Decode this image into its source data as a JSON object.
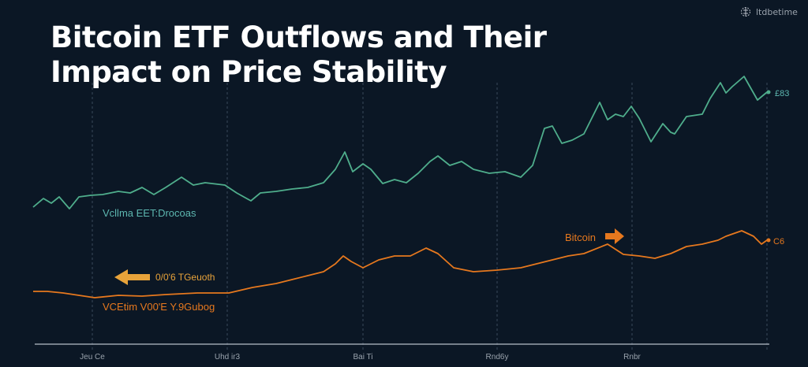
{
  "title_line1": "Bitcoin ETF Outflows and Their",
  "title_line2": "Impact on Price Stability",
  "brand": {
    "text": "ltdbetime",
    "icon": "network-logo-icon"
  },
  "colors": {
    "background": "#0b1725",
    "green": "#4fae8c",
    "orange": "#e6781e",
    "arrow_left": "#e8a33a",
    "axis": "#9aa3ad"
  },
  "chart_data": {
    "type": "line",
    "title": "Bitcoin ETF Outflows and Their Impact on Price Stability",
    "grid": "vertical dashed",
    "x_ticks": [
      "Jeu Ce",
      "Uhd ir3",
      "Bai Ti",
      "Rnd6y",
      "Rnbr"
    ],
    "series": [
      {
        "name": "Vcllma EET:Drocoas",
        "end_label": "£83",
        "color": "#4fae8c",
        "points": [
          [
            0,
            177
          ],
          [
            13,
            188
          ],
          [
            23,
            182
          ],
          [
            33,
            190
          ],
          [
            46,
            175
          ],
          [
            58,
            190
          ],
          [
            73,
            192
          ],
          [
            88,
            193
          ],
          [
            108,
            197
          ],
          [
            123,
            195
          ],
          [
            138,
            202
          ],
          [
            153,
            193
          ],
          [
            168,
            202
          ],
          [
            188,
            215
          ],
          [
            203,
            205
          ],
          [
            218,
            208
          ],
          [
            243,
            205
          ],
          [
            258,
            195
          ],
          [
            276,
            185
          ],
          [
            288,
            195
          ],
          [
            308,
            197
          ],
          [
            328,
            200
          ],
          [
            348,
            202
          ],
          [
            368,
            208
          ],
          [
            383,
            225
          ],
          [
            395,
            247
          ],
          [
            405,
            222
          ],
          [
            418,
            232
          ],
          [
            428,
            225
          ],
          [
            443,
            207
          ],
          [
            458,
            212
          ],
          [
            473,
            208
          ],
          [
            488,
            220
          ],
          [
            503,
            235
          ],
          [
            513,
            242
          ],
          [
            528,
            230
          ],
          [
            543,
            235
          ],
          [
            558,
            225
          ],
          [
            578,
            220
          ],
          [
            598,
            222
          ],
          [
            618,
            215
          ],
          [
            633,
            230
          ],
          [
            648,
            277
          ],
          [
            658,
            280
          ],
          [
            670,
            258
          ],
          [
            683,
            262
          ],
          [
            698,
            270
          ],
          [
            718,
            310
          ],
          [
            728,
            288
          ],
          [
            738,
            295
          ],
          [
            748,
            292
          ],
          [
            758,
            305
          ],
          [
            768,
            290
          ],
          [
            783,
            260
          ],
          [
            798,
            283
          ],
          [
            808,
            272
          ],
          [
            813,
            270
          ],
          [
            828,
            292
          ],
          [
            848,
            295
          ],
          [
            858,
            315
          ],
          [
            871,
            335
          ],
          [
            878,
            322
          ],
          [
            886,
            330
          ],
          [
            901,
            343
          ],
          [
            918,
            313
          ],
          [
            930,
            323
          ]
        ]
      },
      {
        "name": "Bitcoin",
        "end_label": "C6",
        "color": "#e6781e",
        "points": [
          [
            0,
            70
          ],
          [
            18,
            70
          ],
          [
            38,
            68
          ],
          [
            58,
            65
          ],
          [
            78,
            62
          ],
          [
            108,
            65
          ],
          [
            138,
            64
          ],
          [
            168,
            66
          ],
          [
            208,
            68
          ],
          [
            248,
            68
          ],
          [
            278,
            75
          ],
          [
            308,
            80
          ],
          [
            328,
            85
          ],
          [
            348,
            90
          ],
          [
            368,
            95
          ],
          [
            383,
            105
          ],
          [
            393,
            115
          ],
          [
            403,
            108
          ],
          [
            418,
            100
          ],
          [
            438,
            110
          ],
          [
            458,
            115
          ],
          [
            478,
            115
          ],
          [
            498,
            125
          ],
          [
            513,
            118
          ],
          [
            533,
            100
          ],
          [
            558,
            95
          ],
          [
            588,
            97
          ],
          [
            618,
            100
          ],
          [
            638,
            105
          ],
          [
            658,
            110
          ],
          [
            678,
            115
          ],
          [
            698,
            118
          ],
          [
            728,
            130
          ],
          [
            748,
            117
          ],
          [
            768,
            115
          ],
          [
            788,
            112
          ],
          [
            808,
            118
          ],
          [
            828,
            127
          ],
          [
            848,
            130
          ],
          [
            868,
            135
          ],
          [
            878,
            140
          ],
          [
            898,
            147
          ],
          [
            913,
            140
          ],
          [
            923,
            130
          ],
          [
            930,
            135
          ]
        ]
      }
    ],
    "annotations": [
      {
        "text": "Bitcoin",
        "arrow": "right",
        "color": "#e6781e"
      },
      {
        "text": "0/0'6 TGeuoth",
        "arrow": "left",
        "color": "#e8a33a"
      },
      {
        "text": "VCEtim V00'E Y.9Gubog",
        "color": "#e6781e"
      }
    ]
  }
}
